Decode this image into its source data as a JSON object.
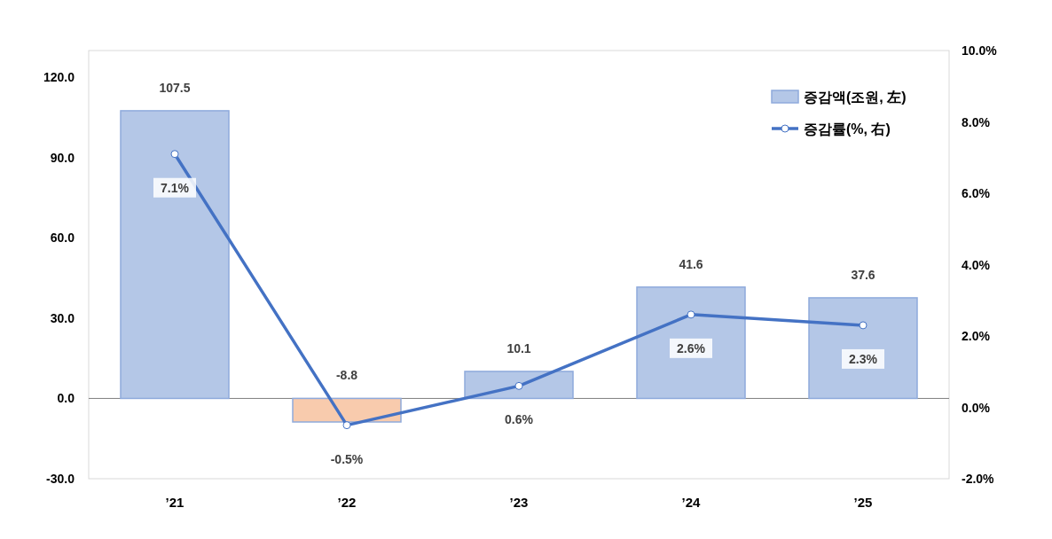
{
  "chart_data": {
    "type": "bar",
    "categories": [
      "’21",
      "’22",
      "’23",
      "’24",
      "’25"
    ],
    "series": [
      {
        "name": "증감액(조원, 左)",
        "color": "#b4c7e7",
        "colors": [
          "#b4c7e7",
          "#f8cbad",
          "#b4c7e7",
          "#b4c7e7",
          "#b4c7e7"
        ],
        "values": [
          107.5,
          -8.8,
          10.1,
          41.6,
          37.6
        ],
        "value_labels": [
          "107.5",
          "-8.8",
          "10.1",
          "41.6",
          "37.6"
        ]
      },
      {
        "name": "증감률(%, 右)",
        "type": "line",
        "axis": "y2",
        "color": "#4472c4",
        "marker": "circle",
        "values": [
          7.1,
          -0.5,
          0.6,
          2.6,
          2.3
        ],
        "value_labels": [
          "7.1%",
          "-0.5%",
          "0.6%",
          "2.6%",
          "2.3%"
        ]
      }
    ],
    "ylim": [
      -30,
      130
    ],
    "yticks": [
      {
        "value": -30,
        "label": "-30.0"
      },
      {
        "value": 0,
        "label": "0.0"
      },
      {
        "value": 30,
        "label": "30.0"
      },
      {
        "value": 60,
        "label": "60.0"
      },
      {
        "value": 90,
        "label": "90.0"
      },
      {
        "value": 120,
        "label": "120.0"
      }
    ],
    "y2lim": [
      -2,
      10
    ],
    "y2ticks": [
      {
        "value": -2,
        "label": "-2.0%"
      },
      {
        "value": 0,
        "label": "0.0%"
      },
      {
        "value": 2,
        "label": "2.0%"
      },
      {
        "value": 4,
        "label": "4.0%"
      },
      {
        "value": 6,
        "label": "6.0%"
      },
      {
        "value": 8,
        "label": "8.0%"
      },
      {
        "value": 10,
        "label": "10.0%"
      }
    ],
    "legend": "top right"
  }
}
